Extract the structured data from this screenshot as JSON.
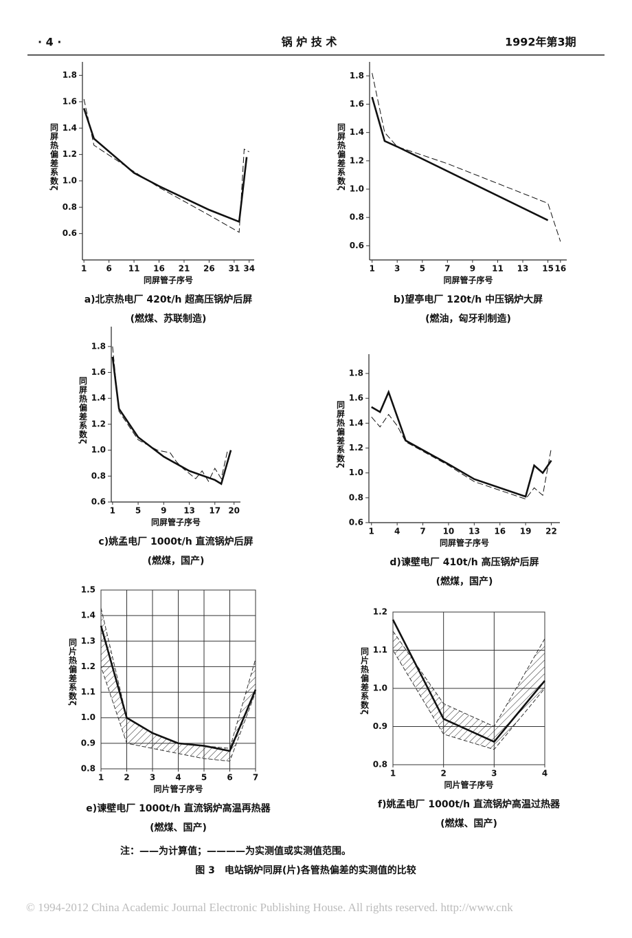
{
  "header": {
    "page": "· 4 ·",
    "journal": "锅 炉 技 术",
    "issue": "1992年第3期"
  },
  "chart_data": [
    {
      "type": "line",
      "title": "a)北京热电厂 420t/h 超高压锅炉后屏",
      "subtitle": "(燃煤、苏联制造)",
      "x_label": "同屏管子序号",
      "y_label": "同屏热偏差系数ζ",
      "xlim": [
        0.7,
        35
      ],
      "ylim": [
        0.4,
        1.85
      ],
      "xticks": [
        1,
        6,
        11,
        16,
        21,
        26,
        31,
        34
      ],
      "yticks": [
        0.6,
        0.8,
        {
          "value": 1,
          "label": "1.0"
        },
        1.2,
        1.4,
        1.6,
        1.8
      ],
      "grid": false,
      "series": [
        {
          "style": "solid",
          "x": [
            1,
            3,
            11,
            16,
            26,
            32,
            33.5
          ],
          "values": [
            1.55,
            1.32,
            1.06,
            0.96,
            0.78,
            0.69,
            1.18
          ]
        },
        {
          "style": "dashed",
          "x": [
            1,
            3,
            11,
            16,
            26,
            32,
            33,
            34
          ],
          "values": [
            1.62,
            1.27,
            1.07,
            0.95,
            0.74,
            0.61,
            1.24,
            1.22
          ]
        }
      ]
    },
    {
      "type": "line",
      "title": "b)望亭电厂 120t/h 中压锅炉大屏",
      "subtitle": "(燃油，匈牙利制造)",
      "x_label": "同屏管子序号",
      "y_label": "同屏热偏差系数ζ",
      "xlim": [
        0.8,
        16.5
      ],
      "ylim": [
        0.5,
        1.85
      ],
      "xticks": [
        1,
        3,
        5,
        7,
        9,
        11,
        13,
        15,
        16
      ],
      "yticks": [
        0.6,
        0.8,
        {
          "value": 1,
          "label": "1.0"
        },
        1.2,
        1.4,
        1.6,
        1.8
      ],
      "grid": false,
      "series": [
        {
          "style": "solid",
          "x": [
            1,
            2,
            3,
            9,
            15
          ],
          "values": [
            1.65,
            1.34,
            1.3,
            1.04,
            0.78
          ]
        },
        {
          "style": "dashed",
          "x": [
            1,
            2,
            3,
            7,
            15,
            16
          ],
          "values": [
            1.82,
            1.4,
            1.3,
            1.18,
            0.9,
            0.63
          ]
        }
      ]
    },
    {
      "type": "line",
      "title": "c)姚孟电厂 1000t/h 直流锅炉后屏",
      "subtitle": "(燃煤，国产)",
      "x_label": "同屏管子序号",
      "y_label": "同屏热偏差系数ζ",
      "xlim": [
        0.8,
        21
      ],
      "ylim": [
        0.6,
        1.9
      ],
      "xticks": [
        1,
        5,
        9,
        13,
        17,
        20
      ],
      "yticks": [
        0.6,
        0.8,
        {
          "value": 1,
          "label": "1.0"
        },
        1.2,
        1.4,
        1.6,
        1.8
      ],
      "grid": false,
      "series": [
        {
          "style": "solid",
          "x": [
            1,
            2,
            5,
            9,
            13,
            17,
            18,
            19.5
          ],
          "values": [
            1.72,
            1.32,
            1.1,
            0.95,
            0.84,
            0.77,
            0.74,
            1
          ]
        },
        {
          "style": "dashed",
          "x": [
            1,
            2,
            5,
            8,
            9,
            10,
            11,
            12,
            13,
            14,
            15,
            16,
            17,
            18,
            19
          ],
          "values": [
            1.8,
            1.3,
            1.08,
            1,
            0.99,
            0.98,
            0.91,
            0.86,
            0.82,
            0.78,
            0.84,
            0.76,
            0.86,
            0.78,
            1
          ]
        }
      ]
    },
    {
      "type": "line",
      "title": "d)谏壁电厂 410t/h 高压锅炉后屏",
      "subtitle": "(燃煤，国产)",
      "x_label": "同屏管子序号",
      "y_label": "同屏热偏差系数ζ",
      "xlim": [
        0.7,
        23
      ],
      "ylim": [
        0.6,
        1.9
      ],
      "xticks": [
        1,
        4,
        7,
        10,
        13,
        16,
        19,
        22
      ],
      "yticks": [
        0.6,
        0.8,
        {
          "value": 1,
          "label": "1.0"
        },
        1.2,
        1.4,
        1.6,
        1.8
      ],
      "grid": false,
      "series": [
        {
          "style": "solid",
          "x": [
            1,
            2,
            3,
            5,
            10,
            13,
            19,
            20,
            21,
            22
          ],
          "values": [
            1.53,
            1.49,
            1.65,
            1.26,
            1.07,
            0.95,
            0.81,
            1.06,
            1,
            1.1
          ]
        },
        {
          "style": "dashed",
          "x": [
            1,
            2,
            3,
            4,
            5,
            10,
            13,
            19,
            20,
            21,
            22
          ],
          "values": [
            1.45,
            1.37,
            1.47,
            1.38,
            1.25,
            1.06,
            0.93,
            0.79,
            0.88,
            0.82,
            1.2
          ]
        }
      ]
    },
    {
      "type": "line",
      "title": "e)谏壁电厂 1000t/h 直流锅炉高温再热器",
      "subtitle": "(燃煤、国产)",
      "x_label": "同片管子序号",
      "y_label": "同片热偏差系数ζ",
      "xlim": [
        1,
        7
      ],
      "ylim": [
        0.8,
        1.5
      ],
      "xticks": [
        1,
        2,
        3,
        4,
        5,
        6,
        7
      ],
      "yticks": [
        0.8,
        0.9,
        {
          "value": 1,
          "label": "1.0"
        },
        1.1,
        1.2,
        1.3,
        1.4,
        1.5
      ],
      "grid": true,
      "series": [
        {
          "style": "range",
          "x": [
            1,
            2,
            3,
            4,
            5,
            6,
            7
          ],
          "low": [
            1.2,
            0.9,
            0.88,
            0.86,
            0.84,
            0.83,
            1.1
          ],
          "high": [
            1.43,
            1,
            0.94,
            0.9,
            0.89,
            0.88,
            1.23
          ]
        },
        {
          "style": "solid",
          "x": [
            1,
            2,
            3,
            4,
            5,
            6,
            7
          ],
          "values": [
            1.36,
            1,
            0.94,
            0.9,
            0.89,
            0.87,
            1.11
          ]
        }
      ]
    },
    {
      "type": "line",
      "title": "f)姚孟电厂 1000t/h 直流锅炉高温过热器",
      "subtitle": "(燃煤、国产)",
      "x_label": "同片管子序号",
      "y_label": "同片热偏差系数ζ",
      "xlim": [
        1,
        4
      ],
      "ylim": [
        0.8,
        1.2
      ],
      "xticks": [
        1,
        2,
        3,
        4
      ],
      "yticks": [
        0.8,
        0.9,
        {
          "value": 1,
          "label": "1.0"
        },
        1.1,
        1.2
      ],
      "grid": true,
      "series": [
        {
          "style": "range",
          "x": [
            1,
            2,
            3,
            4
          ],
          "low": [
            1.1,
            0.88,
            0.84,
            1
          ],
          "high": [
            1.15,
            0.96,
            0.9,
            1.13
          ]
        },
        {
          "style": "solid",
          "x": [
            1,
            2,
            3,
            4
          ],
          "values": [
            1.18,
            0.92,
            0.86,
            1.02
          ]
        }
      ]
    }
  ],
  "note": "注：——为计算值；————为实测值或实测值范围。",
  "figure_caption": "图 3　电站锅炉同屏(片)各管热偏差的实测值的比较",
  "copyright": "© 1994-2012 China Academic Journal Electronic Publishing House. All rights reserved.    http://www.cnk"
}
